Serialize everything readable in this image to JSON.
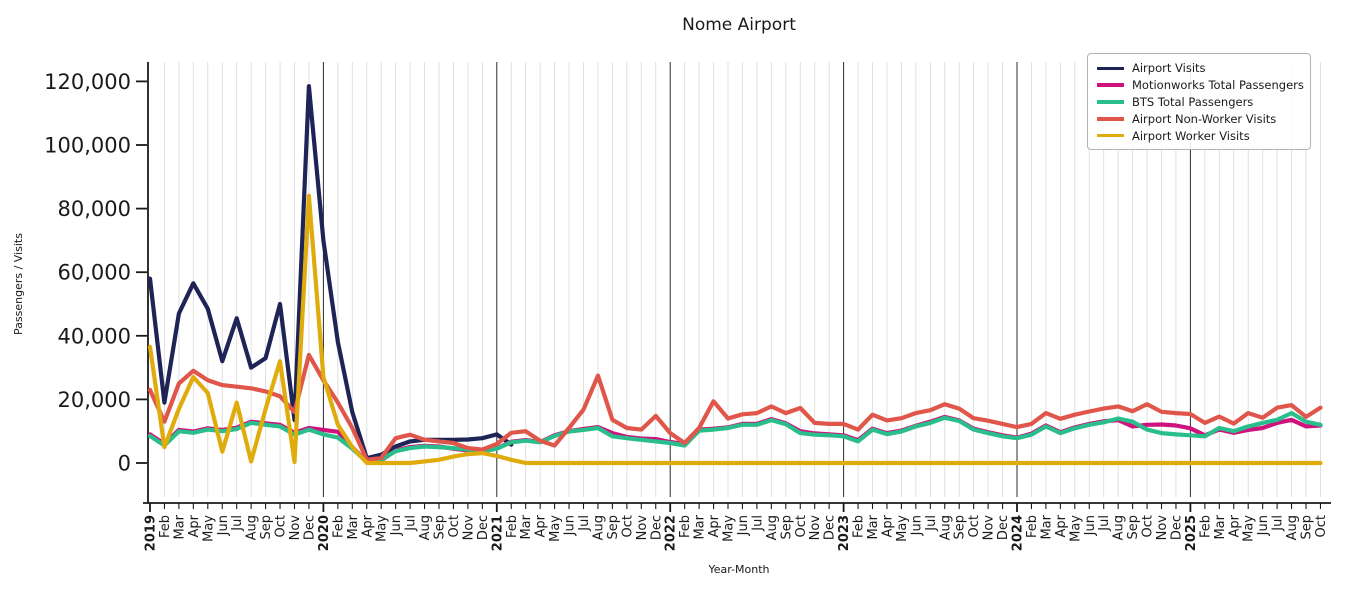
{
  "chart_data": {
    "type": "line",
    "title": "Nome Airport",
    "xlabel": "Year-Month",
    "ylabel": "Passengers / Visits",
    "legend_position": "upper right",
    "grid": "vertical gridlines per month, dark vertical line at each January",
    "ylim": [
      -12500,
      126500
    ],
    "yticks": [
      0,
      20000,
      40000,
      60000,
      80000,
      100000,
      120000
    ],
    "ytick_labels": [
      "0",
      "20,000",
      "40,000",
      "60,000",
      "80,000",
      "100,000",
      "120,000"
    ],
    "x_labels": [
      "2019",
      "Feb",
      "Mar",
      "Apr",
      "May",
      "Jun",
      "Jul",
      "Aug",
      "Sep",
      "Oct",
      "Nov",
      "Dec",
      "2020",
      "Feb",
      "Mar",
      "Apr",
      "May",
      "Jun",
      "Jul",
      "Aug",
      "Sep",
      "Oct",
      "Nov",
      "Dec",
      "2021",
      "Feb",
      "Mar",
      "Apr",
      "May",
      "Jun",
      "Jul",
      "Aug",
      "Sep",
      "Oct",
      "Nov",
      "Dec",
      "2022",
      "Feb",
      "Mar",
      "Apr",
      "May",
      "Jun",
      "Jul",
      "Aug",
      "Sep",
      "Oct",
      "Nov",
      "Dec",
      "2023",
      "Feb",
      "Mar",
      "Apr",
      "May",
      "Jun",
      "Jul",
      "Aug",
      "Sep",
      "Oct",
      "Nov",
      "Dec",
      "2024",
      "Feb",
      "Mar",
      "Apr",
      "May",
      "Jun",
      "Jul",
      "Aug",
      "Sep",
      "Oct",
      "Nov",
      "Dec",
      "2025",
      "Feb",
      "Mar",
      "Apr",
      "May",
      "Jun",
      "Jul",
      "Aug",
      "Sep",
      "Oct"
    ],
    "series": [
      {
        "name": "Airport Visits",
        "color": "#1e2456",
        "values": [
          58000,
          19000,
          47000,
          56500,
          48500,
          32000,
          45500,
          30000,
          33000,
          50000,
          13500,
          118500,
          70000,
          38000,
          16000,
          1500,
          2600,
          5200,
          6800,
          7300,
          7300,
          7300,
          7400,
          7800,
          9000,
          5800,
          null,
          null,
          null,
          null,
          null,
          null,
          null,
          null,
          null,
          null,
          null,
          null,
          null,
          null,
          null,
          null,
          null,
          null,
          null,
          null,
          null,
          null,
          null,
          null,
          null,
          null,
          null,
          null,
          null,
          null,
          null,
          null,
          null,
          null,
          null,
          null,
          null,
          null,
          null,
          null,
          null,
          null,
          null,
          null,
          null,
          null,
          null,
          null,
          null,
          null,
          null,
          null,
          null,
          null,
          null,
          null
        ]
      },
      {
        "name": "Motionworks Total Passengers",
        "color": "#ce137c",
        "values": [
          9000,
          6000,
          10400,
          9900,
          10900,
          10400,
          11100,
          13000,
          12500,
          12000,
          9500,
          11000,
          10400,
          9800,
          5000,
          400,
          800,
          3900,
          5000,
          5400,
          5200,
          4500,
          3900,
          3600,
          4600,
          6700,
          7200,
          6600,
          8700,
          10000,
          10700,
          11300,
          9400,
          8200,
          7700,
          7500,
          6600,
          6000,
          10500,
          10800,
          11200,
          12300,
          12300,
          13800,
          12500,
          10000,
          9300,
          9000,
          8700,
          7200,
          10800,
          9400,
          10200,
          11700,
          13000,
          14500,
          13400,
          10800,
          9700,
          8700,
          8000,
          9200,
          11800,
          9700,
          11200,
          12300,
          13100,
          13500,
          11500,
          12000,
          12100,
          11800,
          10900,
          8700,
          10500,
          9500,
          10400,
          11000,
          12600,
          13600,
          11500,
          11800
        ]
      },
      {
        "name": "BTS Total Passengers",
        "color": "#2abe8d",
        "values": [
          8500,
          5500,
          10000,
          9500,
          10500,
          10000,
          10700,
          12600,
          12000,
          11500,
          8900,
          10500,
          9000,
          8000,
          4500,
          300,
          1000,
          3700,
          4700,
          5200,
          5000,
          4700,
          4200,
          3700,
          4500,
          6500,
          7000,
          6500,
          8500,
          9900,
          10400,
          11000,
          8400,
          7800,
          7300,
          6800,
          6300,
          5500,
          10200,
          10500,
          11000,
          12000,
          12000,
          13500,
          12200,
          9400,
          8900,
          8700,
          8400,
          6800,
          10500,
          9100,
          9900,
          11500,
          12600,
          14200,
          13200,
          10500,
          9400,
          8400,
          7800,
          8900,
          11500,
          9400,
          10900,
          12000,
          12800,
          14000,
          13000,
          10500,
          9400,
          9000,
          8700,
          8400,
          11000,
          10000,
          11500,
          12600,
          13600,
          15700,
          13000,
          12000
        ]
      },
      {
        "name": "Airport Non-Worker Visits",
        "color": "#e0564a",
        "values": [
          23000,
          13000,
          25000,
          29000,
          26000,
          24500,
          24000,
          23500,
          22500,
          21000,
          16000,
          34000,
          26000,
          19000,
          11000,
          1000,
          1600,
          7800,
          8900,
          7300,
          6800,
          6300,
          4700,
          4200,
          6000,
          9500,
          10000,
          7000,
          5500,
          11000,
          16800,
          27500,
          13600,
          11000,
          10500,
          14800,
          9400,
          6300,
          11000,
          19400,
          14000,
          15300,
          15700,
          17800,
          15700,
          17300,
          12600,
          12300,
          12300,
          10500,
          15200,
          13400,
          14100,
          15700,
          16600,
          18500,
          17100,
          14100,
          13300,
          12300,
          11300,
          12300,
          15700,
          13900,
          15200,
          16200,
          17100,
          17800,
          16300,
          18500,
          16100,
          15700,
          15400,
          12600,
          14600,
          12400,
          15700,
          14200,
          17400,
          18200,
          14500,
          17400
        ]
      },
      {
        "name": "Airport Worker Visits",
        "color": "#e0ab0d",
        "values": [
          36500,
          5000,
          17000,
          27000,
          22000,
          3600,
          19000,
          500,
          17000,
          32000,
          300,
          84000,
          27000,
          12000,
          5000,
          0,
          0,
          0,
          0,
          500,
          1000,
          2000,
          2800,
          3100,
          2200,
          1000,
          0,
          0,
          0,
          0,
          0,
          0,
          0,
          0,
          0,
          0,
          0,
          0,
          0,
          0,
          0,
          0,
          0,
          0,
          0,
          0,
          0,
          0,
          0,
          0,
          0,
          0,
          0,
          0,
          0,
          0,
          0,
          0,
          0,
          0,
          0,
          0,
          0,
          0,
          0,
          0,
          0,
          0,
          0,
          0,
          0,
          0,
          0,
          0,
          0,
          0,
          0,
          0,
          0,
          0,
          0,
          0
        ]
      }
    ]
  }
}
